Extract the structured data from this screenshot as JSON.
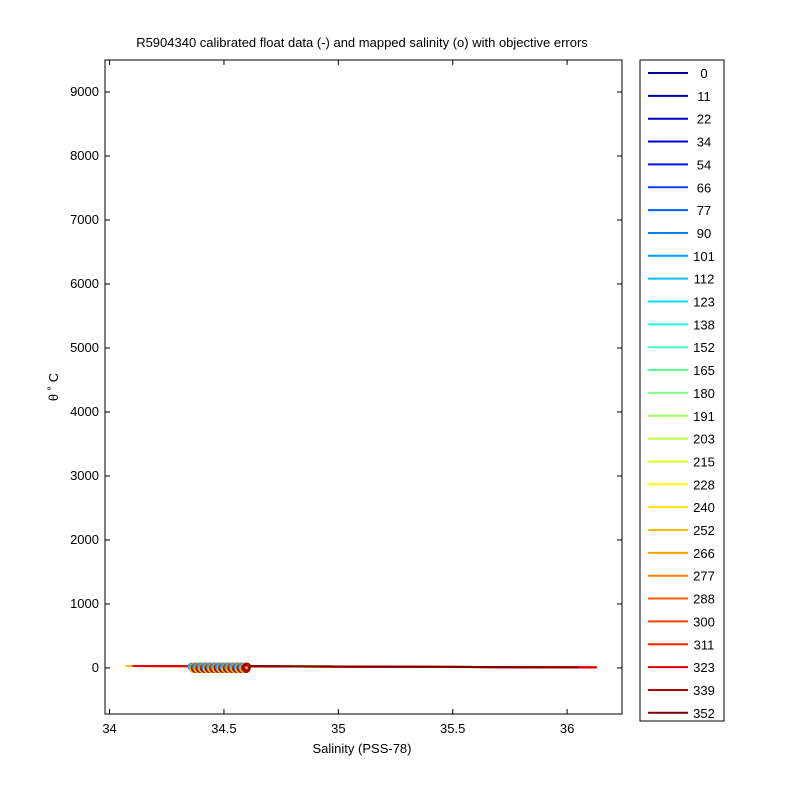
{
  "chart_data": {
    "type": "line",
    "title": "R5904340 calibrated float data (-) and mapped salinity (o) with objective errors",
    "xlabel": "Salinity (PSS-78)",
    "ylabel": "θ ˚ C",
    "xlim": [
      33.98,
      36.24
    ],
    "ylim": [
      -720,
      9500
    ],
    "xticks": [
      34,
      34.5,
      35,
      35.5,
      36
    ],
    "xtick_labels": [
      "34",
      "34.5",
      "35",
      "35.5",
      "36"
    ],
    "yticks": [
      0,
      1000,
      2000,
      3000,
      4000,
      5000,
      6000,
      7000,
      8000,
      9000
    ],
    "ytick_labels": [
      "0",
      "1000",
      "2000",
      "3000",
      "4000",
      "5000",
      "6000",
      "7000",
      "8000",
      "9000"
    ],
    "grid": false,
    "legend_position": "outside-right",
    "series": [
      {
        "name": "0",
        "color": "#00008f",
        "x": [
          34.38,
          36.1
        ],
        "y": [
          30,
          8
        ]
      },
      {
        "name": "11",
        "color": "#0000a8",
        "x": [
          34.38,
          36.08
        ],
        "y": [
          30,
          8
        ]
      },
      {
        "name": "22",
        "color": "#0000c0",
        "x": [
          34.38,
          36.08
        ],
        "y": [
          30,
          8
        ]
      },
      {
        "name": "34",
        "color": "#0000d8",
        "x": [
          34.38,
          36.09
        ],
        "y": [
          30,
          8
        ]
      },
      {
        "name": "54",
        "color": "#0010ff",
        "x": [
          34.38,
          36.09
        ],
        "y": [
          30,
          8
        ]
      },
      {
        "name": "66",
        "color": "#0040ff",
        "x": [
          34.38,
          36.1
        ],
        "y": [
          30,
          8
        ]
      },
      {
        "name": "77",
        "color": "#0060ff",
        "x": [
          34.38,
          36.1
        ],
        "y": [
          30,
          8
        ]
      },
      {
        "name": "90",
        "color": "#0080ff",
        "x": [
          34.38,
          36.1
        ],
        "y": [
          30,
          8
        ]
      },
      {
        "name": "101",
        "color": "#00a0ff",
        "x": [
          34.38,
          36.1
        ],
        "y": [
          30,
          8
        ]
      },
      {
        "name": "112",
        "color": "#00c0ff",
        "x": [
          34.38,
          36.1
        ],
        "y": [
          30,
          8
        ]
      },
      {
        "name": "123",
        "color": "#00e0ff",
        "x": [
          34.38,
          36.1
        ],
        "y": [
          30,
          8
        ]
      },
      {
        "name": "138",
        "color": "#20ffdf",
        "x": [
          34.38,
          36.1
        ],
        "y": [
          30,
          8
        ]
      },
      {
        "name": "152",
        "color": "#40ffbf",
        "x": [
          34.38,
          36.1
        ],
        "y": [
          30,
          8
        ]
      },
      {
        "name": "165",
        "color": "#60ff9f",
        "x": [
          34.38,
          36.1
        ],
        "y": [
          30,
          8
        ]
      },
      {
        "name": "180",
        "color": "#80ff80",
        "x": [
          34.38,
          36.1
        ],
        "y": [
          30,
          8
        ]
      },
      {
        "name": "191",
        "color": "#9fff60",
        "x": [
          34.38,
          36.1
        ],
        "y": [
          30,
          8
        ]
      },
      {
        "name": "203",
        "color": "#bfff40",
        "x": [
          34.38,
          36.1
        ],
        "y": [
          30,
          8
        ]
      },
      {
        "name": "215",
        "color": "#dfff20",
        "x": [
          34.38,
          36.1
        ],
        "y": [
          30,
          8
        ]
      },
      {
        "name": "228",
        "color": "#ffff00",
        "x": [
          34.38,
          36.1
        ],
        "y": [
          30,
          8
        ]
      },
      {
        "name": "240",
        "color": "#ffdf00",
        "x": [
          34.38,
          36.1
        ],
        "y": [
          30,
          8
        ]
      },
      {
        "name": "252",
        "color": "#ffbf00",
        "x": [
          34.07,
          36.1
        ],
        "y": [
          30,
          8
        ]
      },
      {
        "name": "266",
        "color": "#ff9f00",
        "x": [
          34.1,
          36.1
        ],
        "y": [
          30,
          8
        ]
      },
      {
        "name": "277",
        "color": "#ff8000",
        "x": [
          34.1,
          36.1
        ],
        "y": [
          30,
          8
        ]
      },
      {
        "name": "288",
        "color": "#ff6000",
        "x": [
          34.1,
          36.12
        ],
        "y": [
          30,
          8
        ]
      },
      {
        "name": "300",
        "color": "#ff4000",
        "x": [
          34.1,
          36.13
        ],
        "y": [
          30,
          8
        ]
      },
      {
        "name": "311",
        "color": "#ff2000",
        "x": [
          34.1,
          36.13
        ],
        "y": [
          30,
          8
        ]
      },
      {
        "name": "323",
        "color": "#e00000",
        "x": [
          34.1,
          36.13
        ],
        "y": [
          30,
          8
        ]
      },
      {
        "name": "339",
        "color": "#b00000",
        "x": [
          34.38,
          35.9
        ],
        "y": [
          30,
          8
        ]
      },
      {
        "name": "352",
        "color": "#800000",
        "x": [
          34.4,
          36.05
        ],
        "y": [
          30,
          8
        ]
      }
    ],
    "mapped_points": {
      "marker": "o",
      "colors": [
        "#00a0ff",
        "#00c0ff",
        "#ffbf00",
        "#ff8000",
        "#e00000",
        "#b00000",
        "#800000"
      ],
      "x": [
        34.37,
        34.39,
        34.41,
        34.43,
        34.45,
        34.47,
        34.49,
        34.51,
        34.53,
        34.55,
        34.57,
        34.59
      ],
      "y": [
        0,
        0,
        0,
        0,
        0,
        0,
        0,
        0,
        0,
        0,
        0,
        0
      ]
    }
  }
}
